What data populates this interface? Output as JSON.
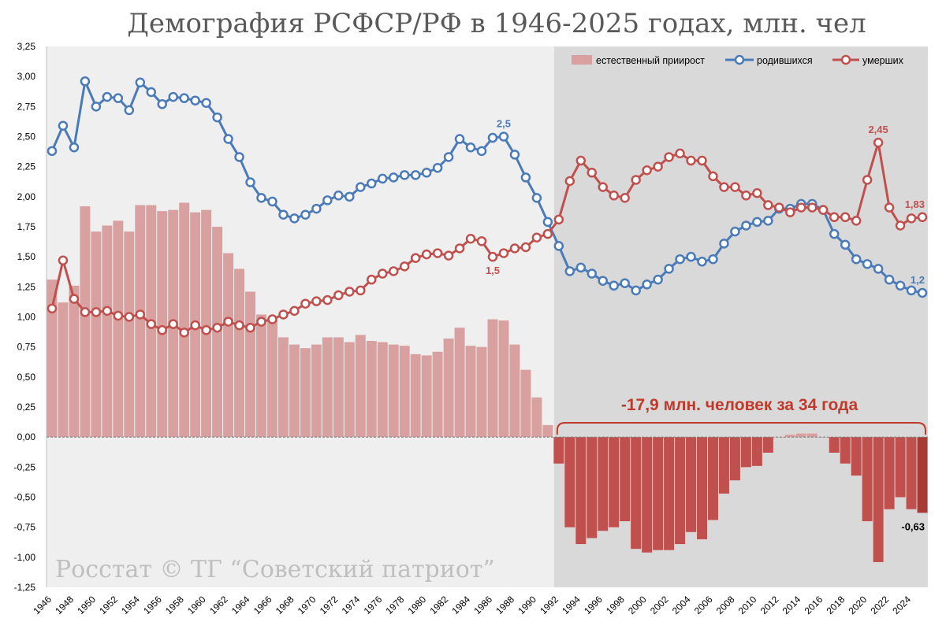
{
  "chart_data": {
    "type": "bar+line",
    "title": "Демография РСФСР/РФ в 1946-2025 годах, млн. чел",
    "years": [
      1946,
      1947,
      1948,
      1949,
      1950,
      1951,
      1952,
      1953,
      1954,
      1955,
      1956,
      1957,
      1958,
      1959,
      1960,
      1961,
      1962,
      1963,
      1964,
      1965,
      1966,
      1967,
      1968,
      1969,
      1970,
      1971,
      1972,
      1973,
      1974,
      1975,
      1976,
      1977,
      1978,
      1979,
      1980,
      1981,
      1982,
      1983,
      1984,
      1985,
      1986,
      1987,
      1988,
      1989,
      1990,
      1991,
      1992,
      1993,
      1994,
      1995,
      1996,
      1997,
      1998,
      1999,
      2000,
      2001,
      2002,
      2003,
      2004,
      2005,
      2006,
      2007,
      2008,
      2009,
      2010,
      2011,
      2012,
      2013,
      2014,
      2015,
      2016,
      2017,
      2018,
      2019,
      2020,
      2021,
      2022,
      2023,
      2024,
      2025
    ],
    "x_tick_labels": [
      "1946",
      "1948",
      "1950",
      "1952",
      "1954",
      "1956",
      "1958",
      "1960",
      "1962",
      "1964",
      "1966",
      "1968",
      "1970",
      "1972",
      "1974",
      "1976",
      "1978",
      "1980",
      "1982",
      "1984",
      "1986",
      "1988",
      "1990",
      "1992",
      "1994",
      "1996",
      "1998",
      "2000",
      "2002",
      "2004",
      "2006",
      "2008",
      "2010",
      "2012",
      "2014",
      "2016",
      "2018",
      "2020",
      "2022",
      "2024"
    ],
    "y_tick_labels": [
      "3,25",
      "3,00",
      "2,75",
      "2,50",
      "2,25",
      "2,00",
      "1,75",
      "1,50",
      "1,25",
      "1,00",
      "0,75",
      "0,50",
      "0,25",
      "0,00",
      "-0,25",
      "-0,50",
      "-0,75",
      "-1,00",
      "-1,25"
    ],
    "ylim": [
      -1.25,
      3.25
    ],
    "ystep": 0.25,
    "grid": false,
    "legend_position": "top-right",
    "series": [
      {
        "name": "естественный приирост",
        "type": "bar",
        "color": "#d9a0a0",
        "color_negative": "#c0504d",
        "values": [
          1.31,
          1.12,
          1.26,
          1.92,
          1.71,
          1.76,
          1.8,
          1.71,
          1.93,
          1.93,
          1.88,
          1.89,
          1.95,
          1.87,
          1.89,
          1.75,
          1.53,
          1.4,
          1.21,
          1.02,
          0.98,
          0.83,
          0.77,
          0.74,
          0.77,
          0.83,
          0.83,
          0.79,
          0.85,
          0.8,
          0.79,
          0.77,
          0.76,
          0.69,
          0.68,
          0.71,
          0.82,
          0.91,
          0.76,
          0.75,
          0.98,
          0.97,
          0.77,
          0.56,
          0.33,
          0.1,
          -0.22,
          -0.75,
          -0.89,
          -0.84,
          -0.78,
          -0.75,
          -0.7,
          -0.93,
          -0.96,
          -0.94,
          -0.94,
          -0.89,
          -0.79,
          -0.85,
          -0.69,
          -0.47,
          -0.36,
          -0.25,
          -0.24,
          -0.13,
          0.0,
          0.02,
          0.03,
          0.03,
          -0.0,
          -0.13,
          -0.22,
          -0.32,
          -0.7,
          -1.04,
          -0.6,
          -0.5,
          -0.6,
          -0.63
        ]
      },
      {
        "name": "родившихся",
        "type": "line",
        "color": "#4a7ab8",
        "values": [
          2.38,
          2.59,
          2.41,
          2.96,
          2.75,
          2.83,
          2.82,
          2.72,
          2.95,
          2.87,
          2.77,
          2.83,
          2.82,
          2.8,
          2.78,
          2.66,
          2.48,
          2.33,
          2.12,
          1.99,
          1.96,
          1.85,
          1.82,
          1.85,
          1.9,
          1.97,
          2.01,
          2.0,
          2.08,
          2.11,
          2.15,
          2.16,
          2.18,
          2.18,
          2.2,
          2.24,
          2.33,
          2.48,
          2.41,
          2.38,
          2.49,
          2.5,
          2.35,
          2.16,
          1.99,
          1.79,
          1.59,
          1.38,
          1.41,
          1.36,
          1.3,
          1.26,
          1.28,
          1.22,
          1.27,
          1.31,
          1.4,
          1.48,
          1.5,
          1.46,
          1.48,
          1.61,
          1.71,
          1.76,
          1.79,
          1.8,
          1.9,
          1.9,
          1.94,
          1.94,
          1.89,
          1.69,
          1.6,
          1.48,
          1.44,
          1.4,
          1.31,
          1.26,
          1.22,
          1.2
        ]
      },
      {
        "name": "умерших",
        "type": "line",
        "color": "#c0504d",
        "values": [
          1.07,
          1.47,
          1.15,
          1.04,
          1.04,
          1.05,
          1.01,
          1.0,
          1.02,
          0.94,
          0.89,
          0.94,
          0.87,
          0.93,
          0.89,
          0.91,
          0.96,
          0.93,
          0.91,
          0.96,
          0.98,
          1.02,
          1.05,
          1.11,
          1.13,
          1.14,
          1.18,
          1.21,
          1.22,
          1.31,
          1.36,
          1.38,
          1.42,
          1.49,
          1.52,
          1.53,
          1.51,
          1.57,
          1.65,
          1.63,
          1.5,
          1.53,
          1.57,
          1.58,
          1.66,
          1.69,
          1.81,
          2.13,
          2.3,
          2.2,
          2.08,
          2.01,
          1.99,
          2.14,
          2.22,
          2.25,
          2.33,
          2.36,
          2.3,
          2.3,
          2.17,
          2.08,
          2.08,
          2.01,
          2.03,
          1.93,
          1.91,
          1.87,
          1.91,
          1.91,
          1.89,
          1.83,
          1.83,
          1.8,
          2.14,
          2.45,
          1.91,
          1.76,
          1.82,
          1.83
        ]
      }
    ],
    "annotations": [
      {
        "text": "2,5",
        "year": 1987,
        "value": 2.5,
        "color": "#4a7ab8",
        "pos": "above"
      },
      {
        "text": "1,5",
        "year": 1986,
        "value": 1.5,
        "color": "#c0504d",
        "pos": "below"
      },
      {
        "text": "2,45",
        "year": 2021,
        "value": 2.45,
        "color": "#c0504d",
        "pos": "above"
      },
      {
        "text": "1,83",
        "year": 2025,
        "value": 1.83,
        "color": "#c0504d",
        "pos": "above"
      },
      {
        "text": "1,2",
        "year": 2025,
        "value": 1.2,
        "color": "#4a7ab8",
        "pos": "above"
      },
      {
        "text": "-0,63",
        "year": 2025,
        "value": -0.63,
        "color": "#000000",
        "pos": "below"
      }
    ],
    "highlight": {
      "from_year": 1992,
      "to_year": 2025,
      "label": "-17,9 млн. человек за 34 года"
    },
    "watermark": "Росстат © ТГ “Советский патриот”"
  }
}
